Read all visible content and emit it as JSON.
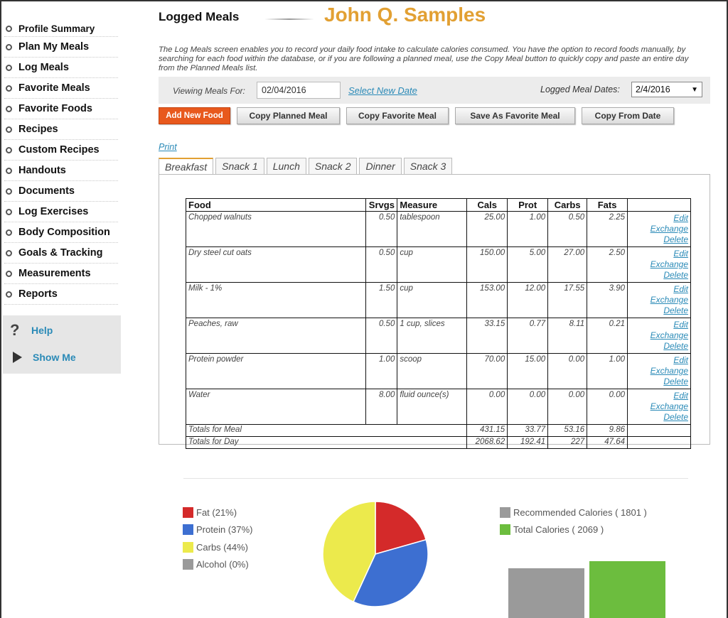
{
  "sidebar": {
    "items": [
      {
        "label": "Profile Summary"
      },
      {
        "label": "Plan My Meals"
      },
      {
        "label": "Log Meals"
      },
      {
        "label": "Favorite Meals"
      },
      {
        "label": "Favorite Foods"
      },
      {
        "label": "Recipes"
      },
      {
        "label": "Custom Recipes"
      },
      {
        "label": "Handouts"
      },
      {
        "label": "Documents"
      },
      {
        "label": "Log Exercises"
      },
      {
        "label": "Body Composition"
      },
      {
        "label": "Goals & Tracking"
      },
      {
        "label": "Measurements"
      },
      {
        "label": "Reports"
      }
    ],
    "help_label": "Help",
    "showme_label": "Show Me"
  },
  "header": {
    "title": "Logged Meals",
    "user_name": "John Q. Samples",
    "description": "The Log Meals screen enables you to record your daily food intake to calculate calories consumed. You have the option to record foods manually, by searching for each food within the database, or if you are following a planned meal, use the Copy Meal button to quickly copy and paste an entire day from the Planned Meals list."
  },
  "viewing": {
    "label": "Viewing Meals For:",
    "date": "02/04/2016",
    "select_new_date": "Select New Date",
    "logged_label": "Logged Meal Dates:",
    "logged_value": "2/4/2016"
  },
  "buttons": {
    "add_new_food": "Add New Food",
    "copy_planned": "Copy Planned Meal",
    "copy_favorite": "Copy Favorite Meal",
    "save_favorite": "Save As Favorite Meal",
    "copy_from_date": "Copy From Date"
  },
  "print_label": "Print",
  "tabs": [
    "Breakfast",
    "Snack 1",
    "Lunch",
    "Snack 2",
    "Dinner",
    "Snack 3"
  ],
  "table": {
    "headers": [
      "Food",
      "Srvgs",
      "Measure",
      "Cals",
      "Prot",
      "Carbs",
      "Fats",
      ""
    ],
    "rows": [
      {
        "food": "Chopped walnuts",
        "srvgs": "0.50",
        "measure": "tablespoon",
        "cals": "25.00",
        "prot": "1.00",
        "carbs": "0.50",
        "fats": "2.25"
      },
      {
        "food": "Dry steel cut oats",
        "srvgs": "0.50",
        "measure": "cup",
        "cals": "150.00",
        "prot": "5.00",
        "carbs": "27.00",
        "fats": "2.50"
      },
      {
        "food": "Milk - 1%",
        "srvgs": "1.50",
        "measure": "cup",
        "cals": "153.00",
        "prot": "12.00",
        "carbs": "17.55",
        "fats": "3.90"
      },
      {
        "food": "Peaches, raw",
        "srvgs": "0.50",
        "measure": "1 cup, slices",
        "cals": "33.15",
        "prot": "0.77",
        "carbs": "8.11",
        "fats": "0.21"
      },
      {
        "food": "Protein powder",
        "srvgs": "1.00",
        "measure": "scoop",
        "cals": "70.00",
        "prot": "15.00",
        "carbs": "0.00",
        "fats": "1.00"
      },
      {
        "food": "Water",
        "srvgs": "8.00",
        "measure": "fluid ounce(s)",
        "cals": "0.00",
        "prot": "0.00",
        "carbs": "0.00",
        "fats": "0.00"
      }
    ],
    "actions": {
      "edit": "Edit",
      "exchange": "Exchange",
      "delete": "Delete"
    },
    "totals_meal": {
      "label": "Totals for Meal",
      "cals": "431.15",
      "prot": "33.77",
      "carbs": "53.16",
      "fats": "9.86"
    },
    "totals_day": {
      "label": "Totals for Day",
      "cals": "2068.62",
      "prot": "192.41",
      "carbs": "227",
      "fats": "47.64"
    }
  },
  "macro_legend": [
    {
      "label": "Fat (21%)",
      "color": "#d42a2a"
    },
    {
      "label": "Protein (37%)",
      "color": "#3d6fd1"
    },
    {
      "label": "Carbs (44%)",
      "color": "#ecea4c"
    },
    {
      "label": "Alcohol (0%)",
      "color": "#9a9a9a"
    }
  ],
  "calorie_legend": [
    {
      "label": "Recommended Calories ( 1801 )",
      "color": "#9a9a9a"
    },
    {
      "label": "Total Calories ( 2069 )",
      "color": "#6cbd3e"
    }
  ],
  "chart_data": [
    {
      "type": "pie",
      "categories": [
        "Fat",
        "Protein",
        "Carbs",
        "Alcohol"
      ],
      "values": [
        21,
        37,
        44,
        0
      ],
      "colors": [
        "#d42a2a",
        "#3d6fd1",
        "#ecea4c",
        "#9a9a9a"
      ],
      "title": ""
    },
    {
      "type": "bar",
      "categories": [
        "Recommended Calories",
        "Total Calories"
      ],
      "values": [
        1801,
        2069
      ],
      "colors": [
        "#9a9a9a",
        "#6cbd3e"
      ],
      "title": ""
    }
  ]
}
